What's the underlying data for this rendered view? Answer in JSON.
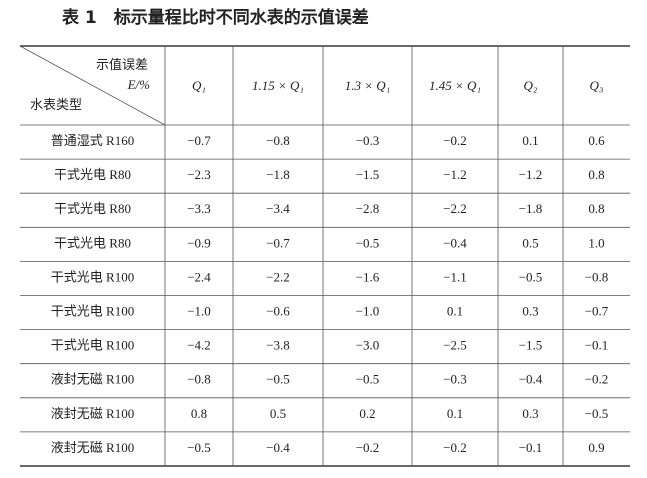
{
  "title": "表 1　标示量程比时不同水表的示值误差",
  "table": {
    "corner": {
      "top": "示值误差",
      "unit": "E/%",
      "bottom": "水表类型"
    },
    "columns": [
      "Q₁",
      "1.15 × Q₁",
      "1.3 × Q₁",
      "1.45 × Q₁",
      "Q₂",
      "Q₃"
    ],
    "rows": [
      [
        "普通湿式 R160",
        "−0.7",
        "−0.8",
        "−0.3",
        "−0.2",
        "0.1",
        "0.6"
      ],
      [
        "干式光电 R80",
        "−2.3",
        "−1.8",
        "−1.5",
        "−1.2",
        "−1.2",
        "0.8"
      ],
      [
        "干式光电 R80",
        "−3.3",
        "−3.4",
        "−2.8",
        "−2.2",
        "−1.8",
        "0.8"
      ],
      [
        "干式光电 R80",
        "−0.9",
        "−0.7",
        "−0.5",
        "−0.4",
        "0.5",
        "1.0"
      ],
      [
        "干式光电 R100",
        "−2.4",
        "−2.2",
        "−1.6",
        "−1.1",
        "−0.5",
        "−0.8"
      ],
      [
        "干式光电 R100",
        "−1.0",
        "−0.6",
        "−1.0",
        "0.1",
        "0.3",
        "−0.7"
      ],
      [
        "干式光电 R100",
        "−4.2",
        "−3.8",
        "−3.0",
        "−2.5",
        "−1.5",
        "−0.1"
      ],
      [
        "液封无磁 R100",
        "−0.8",
        "−0.5",
        "−0.5",
        "−0.3",
        "−0.4",
        "−0.2"
      ],
      [
        "液封无磁 R100",
        "0.8",
        "0.5",
        "0.2",
        "0.1",
        "0.3",
        "−0.5"
      ],
      [
        "液封无磁 R100",
        "−0.5",
        "−0.4",
        "−0.2",
        "−0.2",
        "−0.1",
        "0.9"
      ]
    ]
  }
}
